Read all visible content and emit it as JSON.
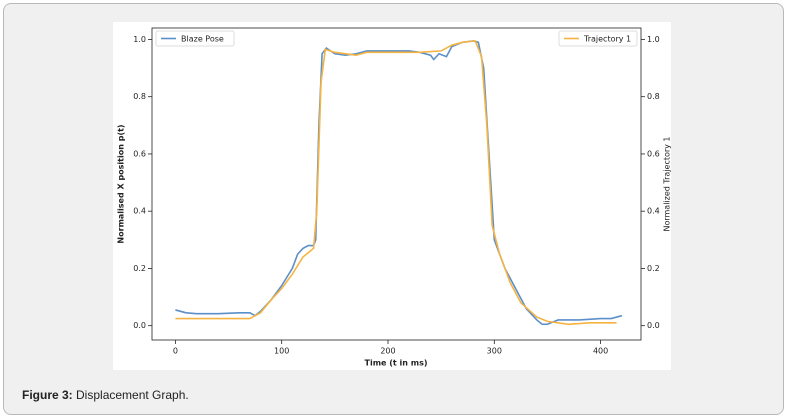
{
  "chart_data": {
    "type": "line",
    "xlabel": "Time (t in ms)",
    "ylabel": "Normalised X position p(t)",
    "y2label": "Normalized Trajectory 1",
    "xlim": [
      -22,
      438
    ],
    "ylim": [
      -0.05,
      1.04
    ],
    "y2lim": [
      -0.05,
      1.04
    ],
    "xticks": [
      0,
      100,
      200,
      300,
      400
    ],
    "yticks": [
      {
        "value": 0,
        "label": "0.0"
      },
      0.2,
      0.4,
      0.6,
      0.8,
      {
        "value": 1,
        "label": "1.0"
      }
    ],
    "y2ticks": [
      {
        "value": 0,
        "label": "0.0"
      },
      0.2,
      0.4,
      0.6,
      0.8,
      {
        "value": 1,
        "label": "1.0"
      }
    ],
    "series": [
      {
        "name": "Blaze Pose",
        "color": "#5b8fc9",
        "legend": "upper left",
        "x": [
          0,
          10,
          20,
          40,
          60,
          70,
          75,
          80,
          90,
          100,
          110,
          115,
          120,
          125,
          130,
          132,
          135,
          138,
          142,
          150,
          160,
          170,
          180,
          200,
          220,
          230,
          240,
          243,
          248,
          255,
          260,
          270,
          280,
          285,
          290,
          295,
          300,
          310,
          320,
          330,
          340,
          345,
          350,
          360,
          380,
          400,
          410,
          420
        ],
        "values": [
          0.055,
          0.045,
          0.042,
          0.042,
          0.045,
          0.045,
          0.035,
          0.05,
          0.09,
          0.14,
          0.2,
          0.25,
          0.27,
          0.28,
          0.28,
          0.3,
          0.7,
          0.95,
          0.97,
          0.95,
          0.945,
          0.95,
          0.96,
          0.96,
          0.96,
          0.955,
          0.945,
          0.93,
          0.95,
          0.94,
          0.975,
          0.99,
          0.995,
          0.99,
          0.9,
          0.6,
          0.3,
          0.2,
          0.13,
          0.06,
          0.02,
          0.005,
          0.005,
          0.02,
          0.02,
          0.025,
          0.025,
          0.035
        ]
      },
      {
        "name": "Trajectory 1",
        "color": "#f5b342",
        "legend": "upper right",
        "axis": "y2",
        "x": [
          0,
          70,
          80,
          90,
          100,
          110,
          120,
          130,
          133,
          137,
          141,
          150,
          170,
          180,
          190,
          230,
          250,
          260,
          270,
          282,
          288,
          293,
          298,
          305,
          315,
          325,
          340,
          350,
          370,
          390,
          415
        ],
        "values": [
          0.025,
          0.025,
          0.045,
          0.09,
          0.13,
          0.18,
          0.24,
          0.27,
          0.4,
          0.85,
          0.965,
          0.955,
          0.945,
          0.955,
          0.955,
          0.955,
          0.96,
          0.98,
          0.99,
          0.995,
          0.94,
          0.7,
          0.35,
          0.25,
          0.15,
          0.08,
          0.03,
          0.015,
          0.005,
          0.01,
          0.01
        ]
      }
    ]
  },
  "caption": {
    "label": "Figure 3:",
    "text": "Displacement Graph."
  }
}
